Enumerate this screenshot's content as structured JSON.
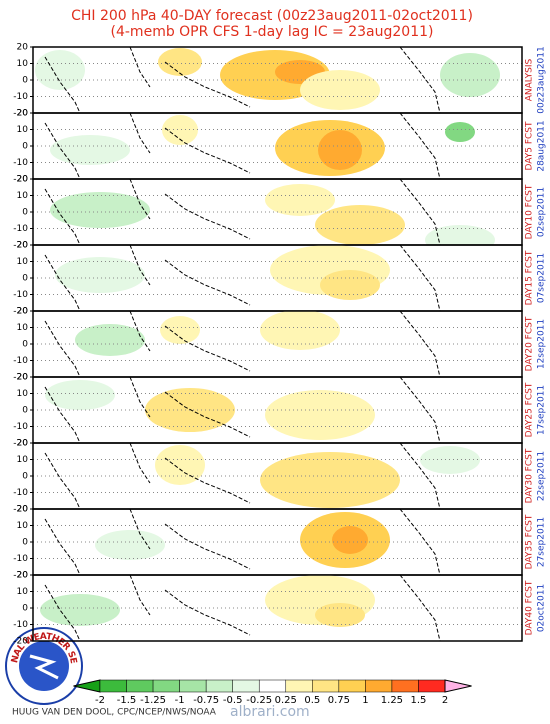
{
  "header": {
    "title_line1": "CHI 200 hPa 40-DAY forecast (00z23aug2011-02oct2011)",
    "title_line2": "(4-memb OPR CFS 1-day lag IC = 23aug2011)"
  },
  "yticks": [
    20,
    10,
    0,
    -10,
    -20
  ],
  "panels": [
    {
      "label": "ANALYSIS",
      "date": "00z23aug2011"
    },
    {
      "label": "DAY5 FCST",
      "date": "28aug2011"
    },
    {
      "label": "DAY10 FCST",
      "date": "02sep2011"
    },
    {
      "label": "DAY15 FCST",
      "date": "07sep2011"
    },
    {
      "label": "DAY20 FCST",
      "date": "12sep2011"
    },
    {
      "label": "DAY25 FCST",
      "date": "17sep2011"
    },
    {
      "label": "DAY30 FCST",
      "date": "22sep2011"
    },
    {
      "label": "DAY35 FCST",
      "date": "27sep2011"
    },
    {
      "label": "DAY40 FCST",
      "date": "02oct2011"
    }
  ],
  "colorbar": {
    "ticks": [
      -2,
      -1.5,
      -1.25,
      -1,
      -0.75,
      -0.5,
      -0.25,
      0.25,
      0.5,
      0.75,
      1,
      1.25,
      1.5,
      2
    ],
    "colors": [
      "#17a017",
      "#3cbb3c",
      "#5fca5f",
      "#82d882",
      "#a6e5a6",
      "#c8f0c8",
      "#e4f8e4",
      "#ffffff",
      "#fff6b4",
      "#ffe584",
      "#ffd052",
      "#ffaa30",
      "#ff7020",
      "#ff2a20",
      "#ffb4e6"
    ]
  },
  "logo": "NATIONAL WEATHER SERVICE",
  "credit": "HUUG VAN DEN DOOL, CPC/NCEP/NWS/NOAA",
  "watermark": "albrari.com"
}
